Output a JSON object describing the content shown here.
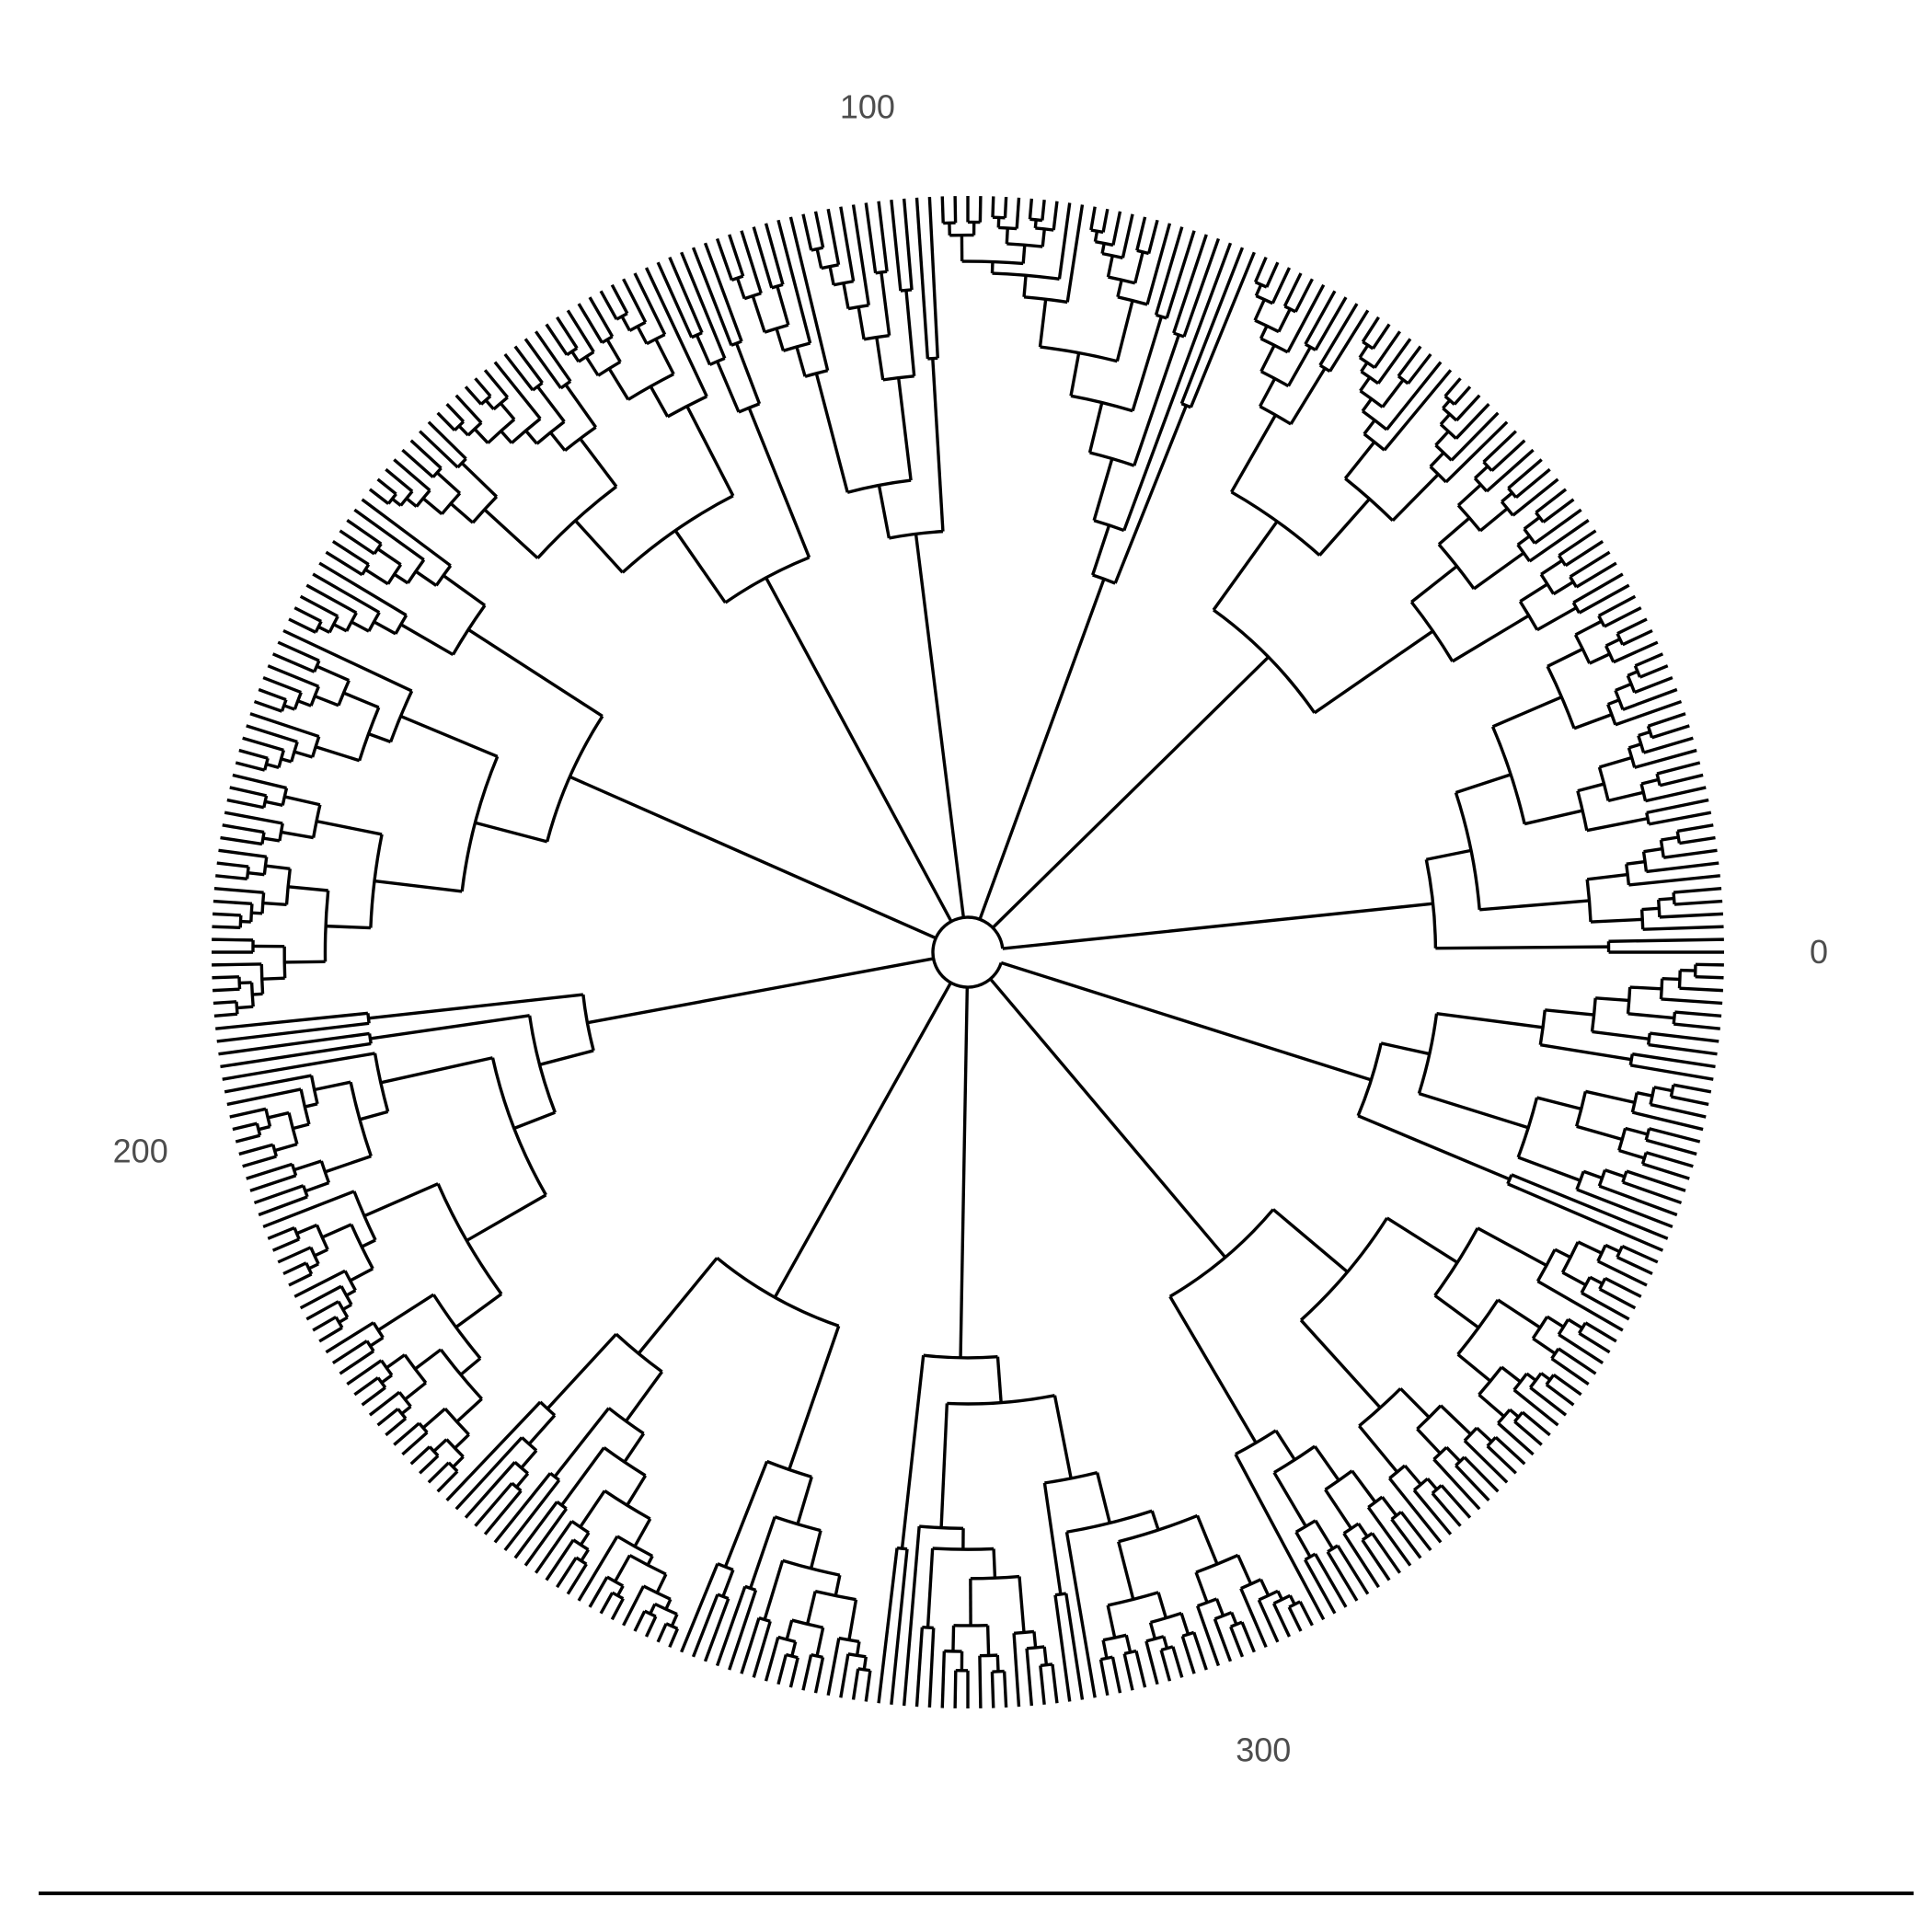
{
  "chart_data": {
    "type": "circular-dendrogram",
    "tip_count": 372,
    "angular_axis": {
      "range": [
        0,
        372
      ],
      "ticks": [
        {
          "value": 0,
          "label": "0"
        },
        {
          "value": 100,
          "label": "100"
        },
        {
          "value": 200,
          "label": "200"
        },
        {
          "value": 300,
          "label": "300"
        }
      ]
    },
    "grid": false,
    "show_bottom_axis_line": true,
    "colors": {
      "branch": "#000000",
      "tick_label": "#4d4d4d",
      "background": "#ffffff"
    }
  }
}
